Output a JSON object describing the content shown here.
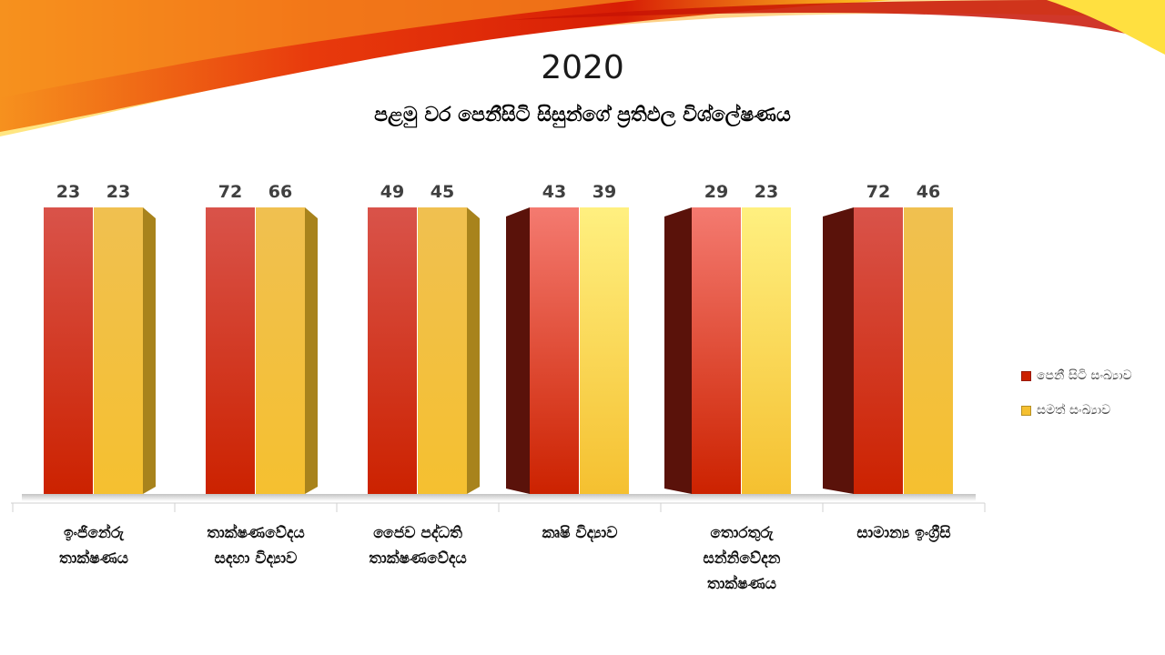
{
  "slide": {
    "title": "2020",
    "subtitle": "පළමු වර පෙනීසිටි සිසුන්ගේ ප්‍රතිඵල විශ්ලේෂණය"
  },
  "colors": {
    "series1": "#cc2200",
    "series2": "#f5c030",
    "swoosh_red": "#d81e05",
    "swoosh_orange": "#f6911e",
    "swoosh_yellow": "#ffd21a"
  },
  "chart_data": {
    "type": "bar",
    "style": "3d-clustered-column",
    "categories": [
      "ඉංජිනේරු තාක්ෂණය",
      "තාක්ෂණවේදය සදහා විද්‍යාව",
      "ජෛව පද්ධති තාක්ෂණවේදය",
      "කෘෂි විද්‍යාව",
      "තොරතුරු සන්නිවේදන තාක්ෂණය",
      "සාමාන්‍ය ඉංග්‍රීසි"
    ],
    "category_lines": [
      [
        "ඉංජිනේරු",
        "තාක්ෂණය"
      ],
      [
        "තාක්ෂණවේදය",
        "සදහා විද්‍යාව"
      ],
      [
        "ජෛව පද්ධති",
        "තාක්ෂණවේදය"
      ],
      [
        "කෘෂි විද්‍යාව"
      ],
      [
        "තොරතුරු",
        "සන්නිවේදන",
        "තාක්ෂණය"
      ],
      [
        "සාමාන්‍ය ඉංග්‍රීසි"
      ]
    ],
    "series": [
      {
        "name": "පෙනී සිටි සංඛ්‍යාව",
        "values": [
          23,
          72,
          49,
          43,
          29,
          72
        ]
      },
      {
        "name": "සමත් සංඛ්‍යාව",
        "values": [
          23,
          66,
          45,
          39,
          23,
          46
        ]
      }
    ],
    "data_labels": true,
    "legend_position": "right",
    "gridlines": false,
    "value_axis_visible": false
  }
}
